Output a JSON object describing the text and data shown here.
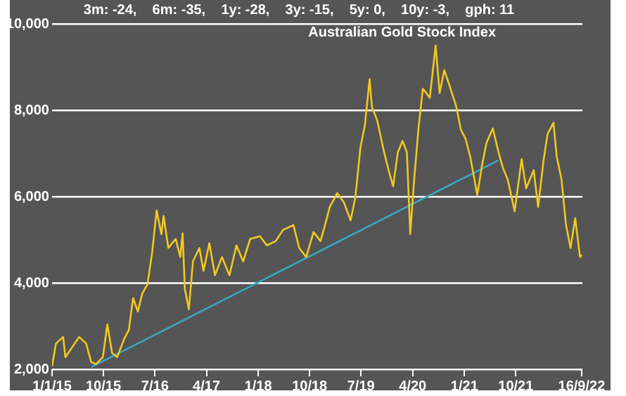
{
  "chart_data": {
    "type": "line",
    "title": "Australian Gold Stock Index",
    "subtitle": "3m: -24,    6m: -35,    1y: -28,    3y: -15,    5y: 0,    10y: -3,    gph: 11",
    "series": [
      {
        "color": "#f2c81e",
        "x": [
          "2015-01-01",
          "2015-01-22",
          "2015-03-01",
          "2015-03-13",
          "2015-05-25",
          "2015-07-01",
          "2015-07-28",
          "2015-08-22",
          "2015-09-28",
          "2015-10-22",
          "2015-11-16",
          "2015-12-13",
          "2016-01-19",
          "2016-02-13",
          "2016-03-07",
          "2016-04-01",
          "2016-04-25",
          "2016-05-22",
          "2016-06-16",
          "2016-07-10",
          "2016-08-04",
          "2016-08-16",
          "2016-09-10",
          "2016-10-19",
          "2016-11-13",
          "2016-11-25",
          "2016-12-07",
          "2016-12-28",
          "2017-01-19",
          "2017-02-22",
          "2017-03-16",
          "2017-04-16",
          "2017-05-16",
          "2017-06-22",
          "2017-08-01",
          "2017-09-07",
          "2017-10-13",
          "2017-11-19",
          "2018-01-10",
          "2018-02-16",
          "2018-04-04",
          "2018-05-13",
          "2018-07-07",
          "2018-08-07",
          "2018-09-13",
          "2018-10-22",
          "2018-11-28",
          "2018-12-22",
          "2019-01-16",
          "2019-02-25",
          "2019-04-01",
          "2019-05-07",
          "2019-06-01",
          "2019-06-28",
          "2019-07-22",
          "2019-08-16",
          "2019-08-28",
          "2019-09-25",
          "2019-11-01",
          "2019-11-25",
          "2019-12-19",
          "2020-01-13",
          "2020-02-07",
          "2020-03-01",
          "2020-03-19",
          "2020-04-07",
          "2020-05-01",
          "2020-05-25",
          "2020-07-01",
          "2020-08-01",
          "2020-08-22",
          "2020-09-16",
          "2020-10-19",
          "2020-11-19",
          "2020-12-13",
          "2021-01-07",
          "2021-02-01",
          "2021-02-28",
          "2021-03-10",
          "2021-04-04",
          "2021-04-28",
          "2021-06-01",
          "2021-07-01",
          "2021-07-25",
          "2021-08-19",
          "2021-09-25",
          "2021-11-01",
          "2021-11-25",
          "2022-01-04",
          "2022-01-28",
          "2022-02-25",
          "2022-03-19",
          "2022-04-19",
          "2022-05-07",
          "2022-06-01",
          "2022-06-25",
          "2022-07-19",
          "2022-08-13",
          "2022-09-07",
          "2022-09-16"
        ],
        "values": [
          2070,
          2600,
          2750,
          2280,
          2750,
          2600,
          2170,
          2120,
          2280,
          3040,
          2380,
          2280,
          2700,
          2910,
          3650,
          3340,
          3760,
          3970,
          4700,
          5680,
          5130,
          5550,
          4810,
          5020,
          4600,
          5150,
          3860,
          3390,
          4500,
          4810,
          4280,
          4920,
          4180,
          4600,
          4180,
          4870,
          4500,
          5020,
          5080,
          4870,
          4970,
          5230,
          5340,
          4810,
          4600,
          5180,
          4970,
          5340,
          5760,
          6080,
          5870,
          5450,
          5980,
          7130,
          7660,
          8720,
          8080,
          7770,
          7030,
          6610,
          6240,
          7030,
          7290,
          7030,
          5130,
          6290,
          7550,
          8500,
          8290,
          9500,
          8400,
          8930,
          8500,
          8080,
          7550,
          7340,
          6920,
          6290,
          6030,
          6710,
          7240,
          7580,
          7030,
          6660,
          6400,
          5660,
          6870,
          6190,
          6610,
          5760,
          6820,
          7450,
          7710,
          6920,
          6400,
          5340,
          4810,
          5500,
          4600,
          4650
        ]
      },
      {
        "type": "line",
        "color": "#3aa6c8",
        "x": [
          "2015-07-28",
          "2021-07-01"
        ],
        "values": [
          2050,
          6840
        ]
      }
    ],
    "xlim": [
      "2015-01-01",
      "2022-09-20"
    ],
    "xticks": [
      {
        "value": "2015-01-01",
        "label": "1/1/15"
      },
      {
        "value": "2015-10-01",
        "label": "10/15"
      },
      {
        "value": "2016-07-01",
        "label": "7/16"
      },
      {
        "value": "2017-04-01",
        "label": "4/17"
      },
      {
        "value": "2018-01-01",
        "label": "1/18"
      },
      {
        "value": "2018-10-01",
        "label": "10/18"
      },
      {
        "value": "2019-07-01",
        "label": "7/19"
      },
      {
        "value": "2020-04-01",
        "label": "4/20"
      },
      {
        "value": "2021-01-01",
        "label": "1/21"
      },
      {
        "value": "2021-10-01",
        "label": "10/21"
      },
      {
        "value": "2022-09-16",
        "label": "16/9/22"
      }
    ],
    "ylim": [
      2000,
      10000
    ],
    "yticks": [
      {
        "value": 2000,
        "label": "2,000"
      },
      {
        "value": 4000,
        "label": "4,000"
      },
      {
        "value": 6000,
        "label": "6,000"
      },
      {
        "value": 8000,
        "label": "8,000"
      },
      {
        "value": 10000,
        "label": "10,000"
      }
    ],
    "grid": "y",
    "legend": false
  }
}
